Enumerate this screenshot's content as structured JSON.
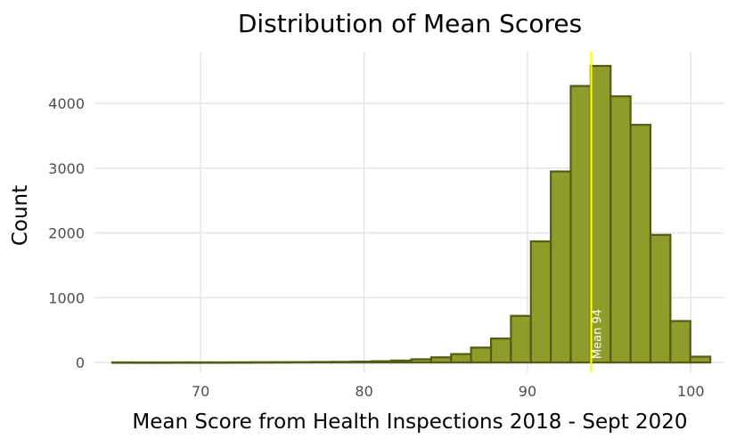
{
  "chart_data": {
    "type": "bar",
    "title": "Distribution of Mean Scores",
    "xlabel": "Mean Score from Health Inspections 2018 - Sept 2020",
    "ylabel": "Count",
    "xlim": [
      63.5,
      102
    ],
    "ylim": [
      -150,
      4800
    ],
    "xticks": [
      70,
      80,
      90,
      100
    ],
    "yticks": [
      0,
      1000,
      2000,
      3000,
      4000
    ],
    "grid": true,
    "bin_width": 1.22,
    "bins": [
      {
        "x": 65.2,
        "value": 2
      },
      {
        "x": 66.42,
        "value": 1
      },
      {
        "x": 67.64,
        "value": 1
      },
      {
        "x": 68.86,
        "value": 2
      },
      {
        "x": 70.08,
        "value": 2
      },
      {
        "x": 71.3,
        "value": 2
      },
      {
        "x": 72.52,
        "value": 3
      },
      {
        "x": 73.74,
        "value": 4
      },
      {
        "x": 74.96,
        "value": 5
      },
      {
        "x": 76.18,
        "value": 6
      },
      {
        "x": 77.4,
        "value": 8
      },
      {
        "x": 78.62,
        "value": 10
      },
      {
        "x": 79.84,
        "value": 14
      },
      {
        "x": 81.06,
        "value": 20
      },
      {
        "x": 82.28,
        "value": 30
      },
      {
        "x": 83.5,
        "value": 50
      },
      {
        "x": 84.72,
        "value": 80
      },
      {
        "x": 85.94,
        "value": 130
      },
      {
        "x": 87.16,
        "value": 230
      },
      {
        "x": 88.38,
        "value": 370
      },
      {
        "x": 89.6,
        "value": 720
      },
      {
        "x": 90.82,
        "value": 1870
      },
      {
        "x": 92.04,
        "value": 2950
      },
      {
        "x": 93.26,
        "value": 4270
      },
      {
        "x": 94.48,
        "value": 4580
      },
      {
        "x": 95.7,
        "value": 4110
      },
      {
        "x": 96.92,
        "value": 3670
      },
      {
        "x": 98.14,
        "value": 1970
      },
      {
        "x": 99.36,
        "value": 640
      },
      {
        "x": 100.58,
        "value": 90
      }
    ],
    "mean_line": {
      "x": 93.9,
      "label": "Mean 94",
      "color": "#ffff00"
    },
    "bar_fill": "#8f9c2b",
    "bar_stroke": "#535c16"
  }
}
